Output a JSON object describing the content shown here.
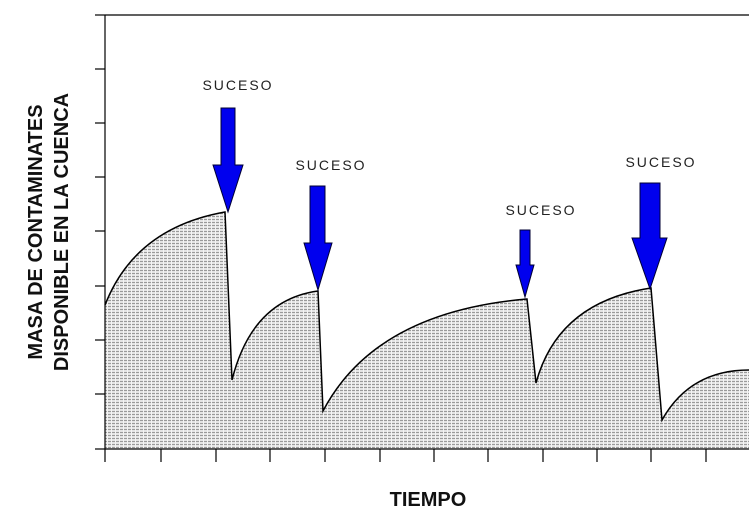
{
  "y_label": [
    "MASA DE CONTAMINATES",
    "DISPONIBLE EN LA CUENCA"
  ],
  "x_label": "TIEMPO",
  "events": [
    {
      "label": "SUCESO"
    },
    {
      "label": "SUCESO"
    },
    {
      "label": "SUCESO"
    },
    {
      "label": "SUCESO"
    }
  ]
}
